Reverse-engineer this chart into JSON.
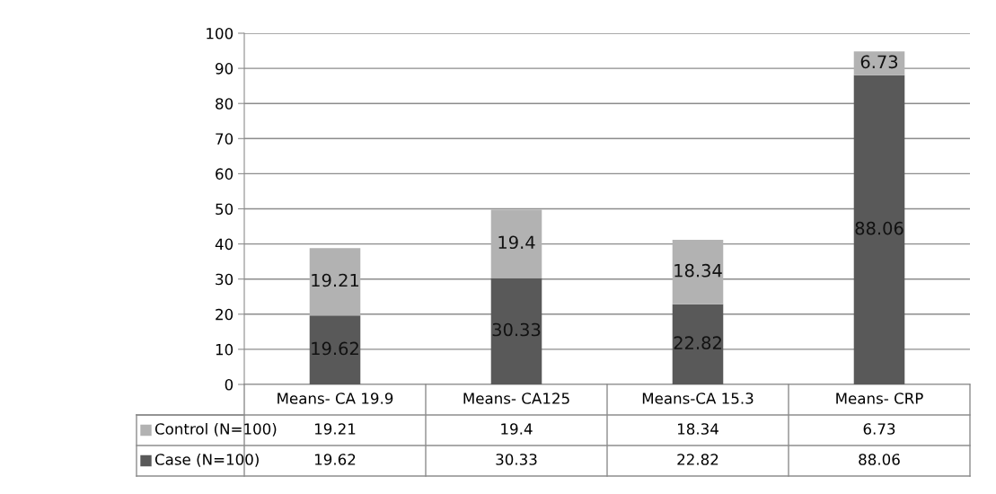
{
  "chart_data": {
    "type": "bar",
    "stacked": true,
    "categories": [
      "Means- CA 19.9",
      "Means- CA125",
      "Means-CA 15.3",
      "Means- CRP"
    ],
    "series": [
      {
        "name": "Case (N=100)",
        "color": "#595959",
        "values": [
          19.62,
          30.33,
          22.82,
          88.06
        ],
        "value_labels": [
          "19.62",
          "30.33",
          "22.82",
          "88.06"
        ]
      },
      {
        "name": "Control (N=100)",
        "color": "#b2b2b2",
        "values": [
          19.21,
          19.4,
          18.34,
          6.73
        ],
        "value_labels": [
          "19.21",
          "19.4",
          "18.34",
          "6.73"
        ]
      }
    ],
    "ylim": [
      0,
      100
    ],
    "yticks": [
      0,
      10,
      20,
      30,
      40,
      50,
      60,
      70,
      80,
      90,
      100
    ],
    "grid": "y",
    "legend": "bottom",
    "annotations": [
      "19.21",
      "19.4",
      "18.34",
      "6.73",
      "19.62",
      "30.33",
      "22.82",
      "88.06"
    ]
  }
}
